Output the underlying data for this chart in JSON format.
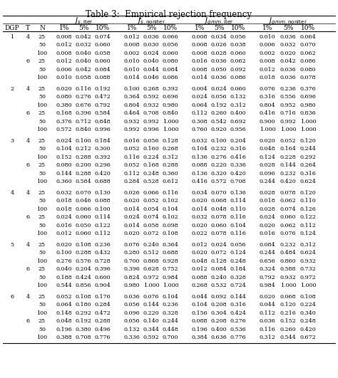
{
  "title": "Table 3:  Empirical rejection frequency",
  "rows": [
    [
      1,
      4,
      25,
      0.008,
      0.042,
      0.074,
      0.012,
      0.036,
      0.066,
      0.008,
      0.034,
      0.056,
      0.01,
      0.036,
      0.064
    ],
    [
      1,
      4,
      50,
      0.012,
      0.032,
      0.06,
      0.008,
      0.03,
      0.056,
      0.008,
      0.026,
      0.038,
      0.006,
      0.032,
      0.07
    ],
    [
      1,
      4,
      100,
      0.008,
      0.04,
      0.058,
      0.002,
      0.024,
      0.06,
      0.008,
      0.028,
      0.06,
      0.002,
      0.02,
      0.062
    ],
    [
      1,
      6,
      25,
      0.012,
      0.04,
      0.06,
      0.01,
      0.04,
      0.08,
      0.016,
      0.036,
      0.062,
      0.008,
      0.042,
      0.086
    ],
    [
      1,
      6,
      50,
      0.006,
      0.042,
      0.084,
      0.01,
      0.044,
      0.084,
      0.008,
      0.05,
      0.092,
      0.012,
      0.036,
      0.08
    ],
    [
      1,
      6,
      100,
      0.01,
      0.058,
      0.088,
      0.014,
      0.046,
      0.086,
      0.014,
      0.036,
      0.086,
      0.018,
      0.036,
      0.078
    ],
    [
      2,
      4,
      25,
      0.02,
      0.116,
      0.192,
      0.1,
      0.268,
      0.392,
      0.004,
      0.024,
      0.06,
      0.076,
      0.236,
      0.376
    ],
    [
      2,
      4,
      50,
      0.08,
      0.276,
      0.472,
      0.364,
      0.592,
      0.696,
      0.024,
      0.056,
      0.132,
      0.316,
      0.556,
      0.696
    ],
    [
      2,
      4,
      100,
      0.38,
      0.676,
      0.792,
      0.804,
      0.932,
      0.98,
      0.064,
      0.192,
      0.312,
      0.804,
      0.952,
      0.98
    ],
    [
      2,
      6,
      25,
      0.168,
      0.396,
      0.584,
      0.464,
      0.708,
      0.84,
      0.112,
      0.26,
      0.4,
      0.416,
      0.716,
      0.836
    ],
    [
      2,
      6,
      50,
      0.376,
      0.712,
      0.848,
      0.932,
      0.992,
      1.0,
      0.308,
      0.542,
      0.692,
      0.9,
      0.992,
      1.0
    ],
    [
      2,
      6,
      100,
      0.572,
      0.84,
      0.996,
      0.992,
      0.996,
      1.0,
      0.76,
      0.92,
      0.956,
      1.0,
      1.0,
      1.0
    ],
    [
      3,
      4,
      25,
      0.024,
      0.1,
      0.184,
      0.016,
      0.056,
      0.128,
      0.032,
      0.1,
      0.204,
      0.02,
      0.052,
      0.12
    ],
    [
      3,
      4,
      50,
      0.104,
      0.212,
      0.3,
      0.052,
      0.16,
      0.268,
      0.104,
      0.232,
      0.316,
      0.048,
      0.164,
      0.244
    ],
    [
      3,
      4,
      100,
      0.152,
      0.288,
      0.392,
      0.116,
      0.224,
      0.312,
      0.136,
      0.276,
      0.416,
      0.124,
      0.228,
      0.292
    ],
    [
      3,
      6,
      25,
      0.08,
      0.2,
      0.296,
      0.052,
      0.168,
      0.288,
      0.088,
      0.22,
      0.336,
      0.028,
      0.144,
      0.264
    ],
    [
      3,
      6,
      50,
      0.144,
      0.288,
      0.42,
      0.112,
      0.248,
      0.36,
      0.136,
      0.32,
      0.42,
      0.096,
      0.232,
      0.316
    ],
    [
      3,
      6,
      100,
      0.36,
      0.584,
      0.688,
      0.284,
      0.528,
      0.612,
      0.416,
      0.572,
      0.708,
      0.244,
      0.42,
      0.624
    ],
    [
      4,
      4,
      25,
      0.032,
      0.07,
      0.13,
      0.026,
      0.066,
      0.116,
      0.034,
      0.07,
      0.136,
      0.028,
      0.078,
      0.12
    ],
    [
      4,
      4,
      50,
      0.018,
      0.046,
      0.088,
      0.02,
      0.052,
      0.102,
      0.02,
      0.068,
      0.114,
      0.018,
      0.062,
      0.11
    ],
    [
      4,
      4,
      100,
      0.018,
      0.066,
      0.1,
      0.014,
      0.054,
      0.104,
      0.014,
      0.048,
      0.11,
      0.028,
      0.074,
      0.126
    ],
    [
      4,
      6,
      25,
      0.024,
      0.06,
      0.114,
      0.024,
      0.074,
      0.102,
      0.032,
      0.078,
      0.116,
      0.024,
      0.06,
      0.122
    ],
    [
      4,
      6,
      50,
      0.016,
      0.05,
      0.122,
      0.014,
      0.058,
      0.098,
      0.02,
      0.06,
      0.104,
      0.02,
      0.062,
      0.112
    ],
    [
      4,
      6,
      100,
      0.012,
      0.06,
      0.112,
      0.02,
      0.072,
      0.108,
      0.022,
      0.078,
      0.116,
      0.016,
      0.076,
      0.124
    ],
    [
      5,
      4,
      25,
      0.02,
      0.108,
      0.236,
      0.076,
      0.24,
      0.364,
      0.012,
      0.024,
      0.056,
      0.084,
      0.232,
      0.312
    ],
    [
      5,
      4,
      50,
      0.1,
      0.288,
      0.432,
      0.28,
      0.512,
      0.688,
      0.02,
      0.072,
      0.124,
      0.244,
      0.484,
      0.624
    ],
    [
      5,
      4,
      100,
      0.276,
      0.576,
      0.728,
      0.7,
      0.868,
      0.928,
      0.048,
      0.128,
      0.248,
      0.656,
      0.86,
      0.932
    ],
    [
      5,
      6,
      25,
      0.04,
      0.204,
      0.396,
      0.396,
      0.628,
      0.752,
      0.012,
      0.084,
      0.184,
      0.324,
      0.588,
      0.732
    ],
    [
      5,
      6,
      50,
      0.188,
      0.424,
      0.6,
      0.824,
      0.972,
      0.984,
      0.088,
      0.24,
      0.328,
      0.792,
      0.932,
      0.972
    ],
    [
      5,
      6,
      100,
      0.544,
      0.856,
      0.904,
      0.98,
      1.0,
      1.0,
      0.268,
      0.532,
      0.724,
      0.984,
      1.0,
      1.0
    ],
    [
      6,
      4,
      25,
      0.052,
      0.108,
      0.176,
      0.036,
      0.076,
      0.104,
      0.044,
      0.092,
      0.144,
      0.02,
      0.068,
      0.108
    ],
    [
      6,
      4,
      50,
      0.064,
      0.18,
      0.284,
      0.056,
      0.144,
      0.236,
      0.104,
      0.208,
      0.316,
      0.044,
      0.12,
      0.224
    ],
    [
      6,
      4,
      100,
      0.148,
      0.292,
      0.472,
      0.096,
      0.22,
      0.328,
      0.156,
      0.304,
      0.424,
      0.112,
      0.216,
      0.34
    ],
    [
      6,
      6,
      25,
      0.048,
      0.192,
      0.288,
      0.056,
      0.14,
      0.244,
      0.088,
      0.208,
      0.276,
      0.036,
      0.152,
      0.248
    ],
    [
      6,
      6,
      50,
      0.196,
      0.38,
      0.496,
      0.132,
      0.344,
      0.448,
      0.196,
      0.4,
      0.536,
      0.116,
      0.26,
      0.42
    ],
    [
      6,
      6,
      100,
      0.388,
      0.708,
      0.776,
      0.336,
      0.592,
      0.7,
      0.384,
      0.636,
      0.776,
      0.312,
      0.544,
      0.672
    ]
  ],
  "font_size_data": 5.8,
  "font_size_header": 6.5,
  "font_size_title": 8.5,
  "font_size_group": 7.5,
  "bg_color": "white",
  "line_color": "black"
}
